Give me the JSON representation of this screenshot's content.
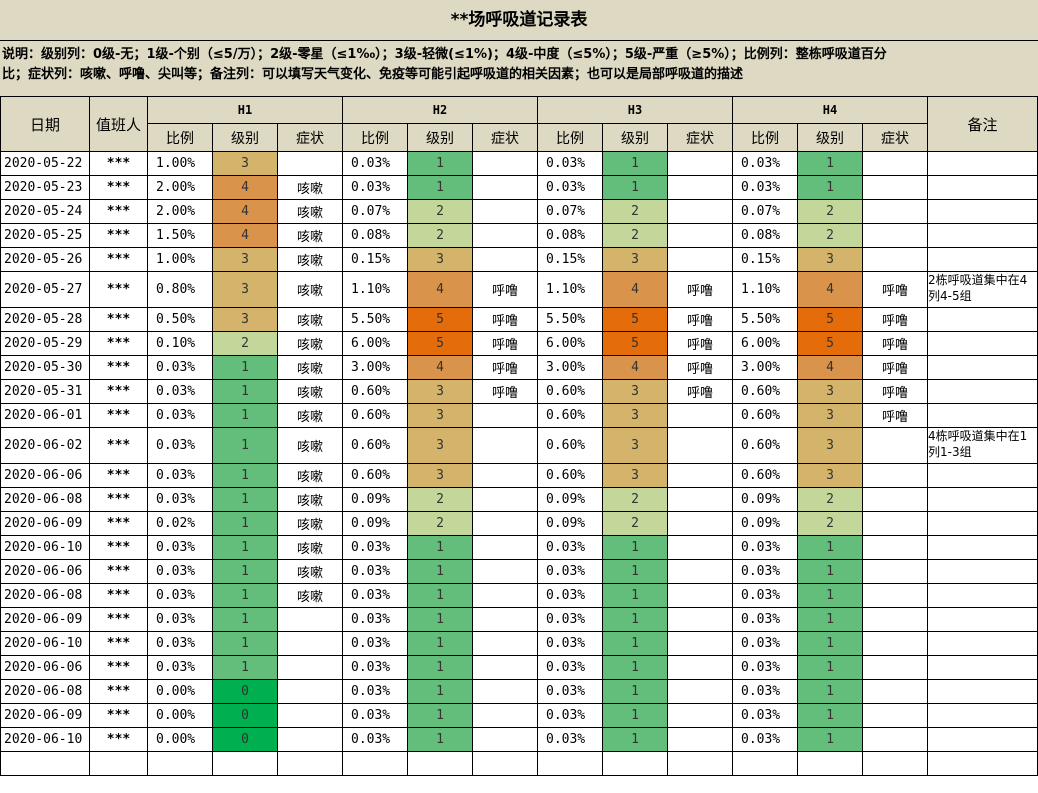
{
  "title": "**场呼吸道记录表",
  "note_line1": "说明：级别列：0级-无；1级-个别（≤5/万）；2级-零星（≤1‰）；3级-轻微(≤1%)；4级-中度（≤5%）；5级-严重（≥5%）；比例列：整栋呼吸道百分",
  "note_line2": "比；症状列：咳嗽、呼噜、尖叫等；备注列：可以填写天气变化、免疫等可能引起呼吸道的相关因素；也可以是局部呼吸道的描述",
  "headers": {
    "date": "日期",
    "duty": "值班人",
    "remark": "备注",
    "groups": [
      "H1",
      "H2",
      "H3",
      "H4"
    ],
    "sub": [
      "比例",
      "级别",
      "症状"
    ]
  },
  "level_colors": [
    "#00b050",
    "#63be7b",
    "#c4d79b",
    "#d4b46a",
    "#d9934a",
    "#e46c0a"
  ],
  "rows": [
    {
      "date": "2020-05-22",
      "duty": "***",
      "h": [
        [
          "1.00%",
          "3",
          ""
        ],
        [
          "0.03%",
          "1",
          ""
        ],
        [
          "0.03%",
          "1",
          ""
        ],
        [
          "0.03%",
          "1",
          ""
        ]
      ],
      "remark": ""
    },
    {
      "date": "2020-05-23",
      "duty": "***",
      "h": [
        [
          "2.00%",
          "4",
          "咳嗽"
        ],
        [
          "0.03%",
          "1",
          ""
        ],
        [
          "0.03%",
          "1",
          ""
        ],
        [
          "0.03%",
          "1",
          ""
        ]
      ],
      "remark": ""
    },
    {
      "date": "2020-05-24",
      "duty": "***",
      "h": [
        [
          "2.00%",
          "4",
          "咳嗽"
        ],
        [
          "0.07%",
          "2",
          ""
        ],
        [
          "0.07%",
          "2",
          ""
        ],
        [
          "0.07%",
          "2",
          ""
        ]
      ],
      "remark": ""
    },
    {
      "date": "2020-05-25",
      "duty": "***",
      "h": [
        [
          "1.50%",
          "4",
          "咳嗽"
        ],
        [
          "0.08%",
          "2",
          ""
        ],
        [
          "0.08%",
          "2",
          ""
        ],
        [
          "0.08%",
          "2",
          ""
        ]
      ],
      "remark": ""
    },
    {
      "date": "2020-05-26",
      "duty": "***",
      "h": [
        [
          "1.00%",
          "3",
          "咳嗽"
        ],
        [
          "0.15%",
          "3",
          ""
        ],
        [
          "0.15%",
          "3",
          ""
        ],
        [
          "0.15%",
          "3",
          ""
        ]
      ],
      "remark": ""
    },
    {
      "date": "2020-05-27",
      "duty": "***",
      "h": [
        [
          "0.80%",
          "3",
          "咳嗽"
        ],
        [
          "1.10%",
          "4",
          "呼噜"
        ],
        [
          "1.10%",
          "4",
          "呼噜"
        ],
        [
          "1.10%",
          "4",
          "呼噜"
        ]
      ],
      "remark": "2栋呼吸道集中在4列4-5组",
      "tall": true
    },
    {
      "date": "2020-05-28",
      "duty": "***",
      "h": [
        [
          "0.50%",
          "3",
          "咳嗽"
        ],
        [
          "5.50%",
          "5",
          "呼噜"
        ],
        [
          "5.50%",
          "5",
          "呼噜"
        ],
        [
          "5.50%",
          "5",
          "呼噜"
        ]
      ],
      "remark": ""
    },
    {
      "date": "2020-05-29",
      "duty": "***",
      "h": [
        [
          "0.10%",
          "2",
          "咳嗽"
        ],
        [
          "6.00%",
          "5",
          "呼噜"
        ],
        [
          "6.00%",
          "5",
          "呼噜"
        ],
        [
          "6.00%",
          "5",
          "呼噜"
        ]
      ],
      "remark": ""
    },
    {
      "date": "2020-05-30",
      "duty": "***",
      "h": [
        [
          "0.03%",
          "1",
          "咳嗽"
        ],
        [
          "3.00%",
          "4",
          "呼噜"
        ],
        [
          "3.00%",
          "4",
          "呼噜"
        ],
        [
          "3.00%",
          "4",
          "呼噜"
        ]
      ],
      "remark": ""
    },
    {
      "date": "2020-05-31",
      "duty": "***",
      "h": [
        [
          "0.03%",
          "1",
          "咳嗽"
        ],
        [
          "0.60%",
          "3",
          "呼噜"
        ],
        [
          "0.60%",
          "3",
          "呼噜"
        ],
        [
          "0.60%",
          "3",
          "呼噜"
        ]
      ],
      "remark": ""
    },
    {
      "date": "2020-06-01",
      "duty": "***",
      "h": [
        [
          "0.03%",
          "1",
          "咳嗽"
        ],
        [
          "0.60%",
          "3",
          ""
        ],
        [
          "0.60%",
          "3",
          ""
        ],
        [
          "0.60%",
          "3",
          "呼噜"
        ]
      ],
      "remark": ""
    },
    {
      "date": "2020-06-02",
      "duty": "***",
      "h": [
        [
          "0.03%",
          "1",
          "咳嗽"
        ],
        [
          "0.60%",
          "3",
          ""
        ],
        [
          "0.60%",
          "3",
          ""
        ],
        [
          "0.60%",
          "3",
          ""
        ]
      ],
      "remark": "4栋呼吸道集中在1列1-3组",
      "tall": true
    },
    {
      "date": "2020-06-06",
      "duty": "***",
      "h": [
        [
          "0.03%",
          "1",
          "咳嗽"
        ],
        [
          "0.60%",
          "3",
          ""
        ],
        [
          "0.60%",
          "3",
          ""
        ],
        [
          "0.60%",
          "3",
          ""
        ]
      ],
      "remark": ""
    },
    {
      "date": "2020-06-08",
      "duty": "***",
      "h": [
        [
          "0.03%",
          "1",
          "咳嗽"
        ],
        [
          "0.09%",
          "2",
          ""
        ],
        [
          "0.09%",
          "2",
          ""
        ],
        [
          "0.09%",
          "2",
          ""
        ]
      ],
      "remark": ""
    },
    {
      "date": "2020-06-09",
      "duty": "***",
      "h": [
        [
          "0.02%",
          "1",
          "咳嗽"
        ],
        [
          "0.09%",
          "2",
          ""
        ],
        [
          "0.09%",
          "2",
          ""
        ],
        [
          "0.09%",
          "2",
          ""
        ]
      ],
      "remark": ""
    },
    {
      "date": "2020-06-10",
      "duty": "***",
      "h": [
        [
          "0.03%",
          "1",
          "咳嗽"
        ],
        [
          "0.03%",
          "1",
          ""
        ],
        [
          "0.03%",
          "1",
          ""
        ],
        [
          "0.03%",
          "1",
          ""
        ]
      ],
      "remark": ""
    },
    {
      "date": "2020-06-06",
      "duty": "***",
      "h": [
        [
          "0.03%",
          "1",
          "咳嗽"
        ],
        [
          "0.03%",
          "1",
          ""
        ],
        [
          "0.03%",
          "1",
          ""
        ],
        [
          "0.03%",
          "1",
          ""
        ]
      ],
      "remark": ""
    },
    {
      "date": "2020-06-08",
      "duty": "***",
      "h": [
        [
          "0.03%",
          "1",
          "咳嗽"
        ],
        [
          "0.03%",
          "1",
          ""
        ],
        [
          "0.03%",
          "1",
          ""
        ],
        [
          "0.03%",
          "1",
          ""
        ]
      ],
      "remark": ""
    },
    {
      "date": "2020-06-09",
      "duty": "***",
      "h": [
        [
          "0.03%",
          "1",
          ""
        ],
        [
          "0.03%",
          "1",
          ""
        ],
        [
          "0.03%",
          "1",
          ""
        ],
        [
          "0.03%",
          "1",
          ""
        ]
      ],
      "remark": ""
    },
    {
      "date": "2020-06-10",
      "duty": "***",
      "h": [
        [
          "0.03%",
          "1",
          ""
        ],
        [
          "0.03%",
          "1",
          ""
        ],
        [
          "0.03%",
          "1",
          ""
        ],
        [
          "0.03%",
          "1",
          ""
        ]
      ],
      "remark": ""
    },
    {
      "date": "2020-06-06",
      "duty": "***",
      "h": [
        [
          "0.03%",
          "1",
          ""
        ],
        [
          "0.03%",
          "1",
          ""
        ],
        [
          "0.03%",
          "1",
          ""
        ],
        [
          "0.03%",
          "1",
          ""
        ]
      ],
      "remark": ""
    },
    {
      "date": "2020-06-08",
      "duty": "***",
      "h": [
        [
          "0.00%",
          "0",
          ""
        ],
        [
          "0.03%",
          "1",
          ""
        ],
        [
          "0.03%",
          "1",
          ""
        ],
        [
          "0.03%",
          "1",
          ""
        ]
      ],
      "remark": ""
    },
    {
      "date": "2020-06-09",
      "duty": "***",
      "h": [
        [
          "0.00%",
          "0",
          ""
        ],
        [
          "0.03%",
          "1",
          ""
        ],
        [
          "0.03%",
          "1",
          ""
        ],
        [
          "0.03%",
          "1",
          ""
        ]
      ],
      "remark": ""
    },
    {
      "date": "2020-06-10",
      "duty": "***",
      "h": [
        [
          "0.00%",
          "0",
          ""
        ],
        [
          "0.03%",
          "1",
          ""
        ],
        [
          "0.03%",
          "1",
          ""
        ],
        [
          "0.03%",
          "1",
          ""
        ]
      ],
      "remark": ""
    }
  ]
}
